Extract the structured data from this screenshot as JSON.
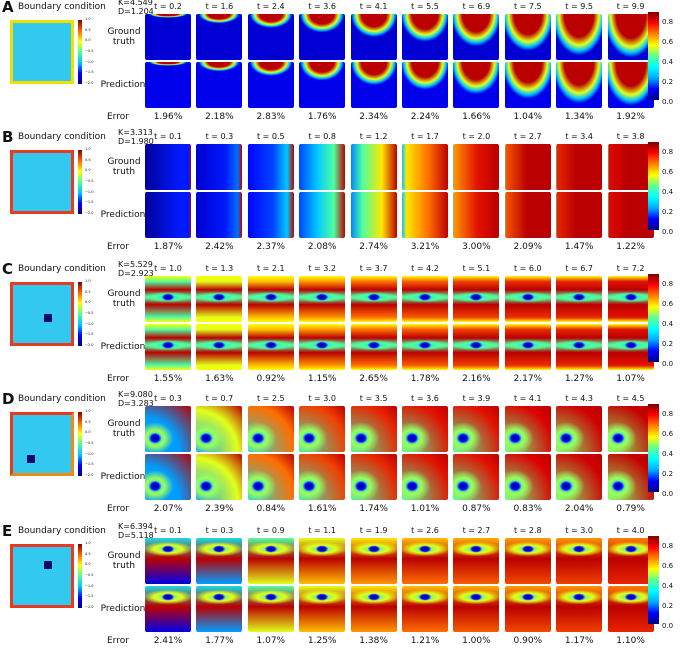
{
  "common": {
    "bc_title": "Boundary condition",
    "ground_truth_label": "Ground\ntruth",
    "prediction_label": "Prediction",
    "error_label": "Error",
    "colorbar_ticks": [
      "0.8",
      "0.6",
      "0.4",
      "0.2",
      "0.0"
    ],
    "bc_ticks": [
      "1.0",
      "0.5",
      "0.0",
      "−0.5",
      "−1.0",
      "−1.5",
      "−2.0"
    ]
  },
  "panels": [
    {
      "label": "A",
      "k": "K=4.549",
      "d": "D=1.204",
      "pattern": "top",
      "bc": {
        "fill": "#33c8f0",
        "top": "#f0e000",
        "left": "#f0e000",
        "right": "#f0e000",
        "bottom": "#f0e000",
        "obstacle": null
      },
      "times": [
        "t = 0.2",
        "t = 1.6",
        "t = 2.4",
        "t = 3.6",
        "t = 4.1",
        "t = 5.5",
        "t = 6.9",
        "t = 7.5",
        "t = 9.5",
        "t = 9.9"
      ],
      "levels": [
        0.05,
        0.2,
        0.3,
        0.4,
        0.5,
        0.6,
        0.7,
        0.8,
        0.9,
        0.95
      ],
      "errors": [
        "1.96%",
        "2.18%",
        "2.83%",
        "1.76%",
        "2.34%",
        "2.24%",
        "1.66%",
        "1.04%",
        "1.34%",
        "1.92%"
      ]
    },
    {
      "label": "B",
      "k": "K=3.313",
      "d": "D=1.980",
      "pattern": "right",
      "bc": {
        "fill": "#33c8f0",
        "top": "#e83a1e",
        "left": "#e83a1e",
        "right": "#e83a1e",
        "bottom": "#e83a1e",
        "obstacle": null
      },
      "times": [
        "t = 0.1",
        "t = 0.3",
        "t = 0.5",
        "t = 0.8",
        "t = 1.2",
        "t = 1.7",
        "t = 2.0",
        "t = 2.7",
        "t = 3.4",
        "t = 3.8"
      ],
      "levels": [
        0.05,
        0.15,
        0.25,
        0.4,
        0.55,
        0.7,
        0.8,
        0.88,
        0.93,
        0.96
      ],
      "errors": [
        "1.87%",
        "2.42%",
        "2.37%",
        "2.08%",
        "2.74%",
        "3.21%",
        "3.00%",
        "2.09%",
        "1.47%",
        "1.22%"
      ]
    },
    {
      "label": "C",
      "k": "K=5.529",
      "d": "D=2.923",
      "pattern": "band",
      "bc": {
        "fill": "#33c8f0",
        "top": "#e83a1e",
        "left": "#e83a1e",
        "right": "#e83a1e",
        "bottom": "#e83a1e",
        "obstacle": "center"
      },
      "times": [
        "t = 1.0",
        "t = 1.3",
        "t = 2.1",
        "t = 3.2",
        "t = 3.7",
        "t = 4.2",
        "t = 5.1",
        "t = 6.0",
        "t = 6.7",
        "t = 7.2"
      ],
      "levels": [
        0.5,
        0.6,
        0.7,
        0.75,
        0.8,
        0.82,
        0.85,
        0.87,
        0.88,
        0.9
      ],
      "errors": [
        "1.55%",
        "1.63%",
        "0.92%",
        "1.15%",
        "2.65%",
        "1.78%",
        "2.16%",
        "2.17%",
        "1.27%",
        "1.07%"
      ]
    },
    {
      "label": "D",
      "k": "K=9.080",
      "d": "D=3.283",
      "pattern": "corner",
      "bc": {
        "fill": "#33c8f0",
        "top": "#e83a1e",
        "left": "#e83a1e",
        "right": "#f08a10",
        "bottom": "#f08a10",
        "obstacle": "lower-left"
      },
      "times": [
        "t = 0.3",
        "t = 0.7",
        "t = 2.5",
        "t = 3.0",
        "t = 3.5",
        "t = 3.6",
        "t = 3.9",
        "t = 4.1",
        "t = 4.3",
        "t = 4.5"
      ],
      "levels": [
        0.3,
        0.6,
        0.8,
        0.85,
        0.88,
        0.9,
        0.9,
        0.92,
        0.93,
        0.94
      ],
      "errors": [
        "2.07%",
        "2.39%",
        "0.84%",
        "1.61%",
        "1.74%",
        "1.01%",
        "0.87%",
        "0.83%",
        "2.04%",
        "0.79%"
      ]
    },
    {
      "label": "E",
      "k": "K=6.394",
      "d": "D=5.118",
      "pattern": "top-hole",
      "bc": {
        "fill": "#33c8f0",
        "top": "#e83a1e",
        "left": "#e83a1e",
        "right": "#e83a1e",
        "bottom": "#e83a1e",
        "obstacle": "upper-center"
      },
      "times": [
        "t = 0.1",
        "t = 0.3",
        "t = 0.9",
        "t = 1.1",
        "t = 1.9",
        "t = 2.6",
        "t = 2.7",
        "t = 2.8",
        "t = 3.0",
        "t = 4.0"
      ],
      "levels": [
        0.1,
        0.3,
        0.6,
        0.7,
        0.75,
        0.8,
        0.82,
        0.84,
        0.85,
        0.88
      ],
      "errors": [
        "2.41%",
        "1.77%",
        "1.07%",
        "1.25%",
        "1.38%",
        "1.21%",
        "1.00%",
        "0.90%",
        "1.17%",
        "1.10%"
      ]
    }
  ]
}
